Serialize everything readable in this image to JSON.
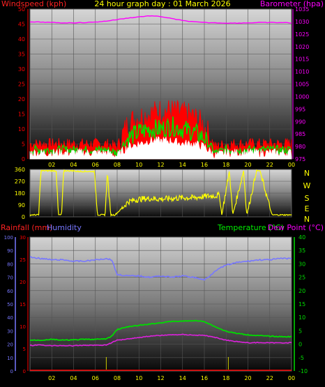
{
  "header": {
    "left_label": "Windspeed (kph)",
    "title": "24 hour graph day : 01 March 2026",
    "right_label": "Barometer (hpa)"
  },
  "lower_header": {
    "rain_label": "Rainfall (mm)",
    "humidity_label": "Humidity",
    "temp_label": "Temperature (°C)",
    "dew_label": "Dew Point (°C)"
  },
  "colors": {
    "wind": "#ff0000",
    "gust": "#00dd00",
    "avg_wind": "#ffffff",
    "barometer": "#ff00ff",
    "direction": "#ffff00",
    "humidity": "#7777ff",
    "temperature": "#00dd00",
    "dew_point": "#dd22dd",
    "rain": "#ff0000",
    "axis_left": "#ff0000",
    "axis_right": "#ff00ff",
    "time_axis": "#ffff00"
  },
  "chart_data": [
    {
      "type": "line",
      "name": "wind-barometer",
      "x_ticks": [
        "02",
        "04",
        "06",
        "08",
        "10",
        "12",
        "14",
        "16",
        "18",
        "20",
        "22",
        "00"
      ],
      "left_axis": {
        "label": "Windspeed (kph)",
        "ylim": [
          0,
          50
        ],
        "ticks": [
          0,
          5,
          10,
          15,
          20,
          25,
          30,
          35,
          40,
          45,
          50
        ]
      },
      "right_axis": {
        "label": "Barometer (hpa)",
        "ylim": [
          975,
          1035
        ],
        "ticks": [
          975,
          980,
          985,
          990,
          995,
          1000,
          1005,
          1010,
          1015,
          1020,
          1025,
          1030,
          1035
        ]
      },
      "series": [
        {
          "name": "Barometer (hpa)",
          "axis": "right",
          "x": [
            0,
            1,
            2,
            3,
            4,
            5,
            6,
            7,
            8,
            9,
            10,
            11,
            12,
            13,
            14,
            15,
            16,
            17,
            18,
            19,
            20,
            21,
            22,
            23,
            24
          ],
          "values": [
            1029.8,
            1029.8,
            1029.6,
            1029.5,
            1029.5,
            1029.6,
            1029.8,
            1030.2,
            1030.8,
            1031.4,
            1031.9,
            1032.3,
            1032.0,
            1031.2,
            1030.4,
            1029.9,
            1029.6,
            1029.5,
            1029.4,
            1029.4,
            1029.5,
            1029.6,
            1029.6,
            1029.6,
            1029.5
          ]
        },
        {
          "name": "Wind speed (kph)",
          "axis": "left",
          "x": [
            0,
            1,
            2,
            3,
            4,
            5,
            6,
            7,
            8,
            9,
            10,
            11,
            12,
            13,
            14,
            15,
            16,
            17,
            18,
            19,
            20,
            21,
            22,
            23,
            24
          ],
          "values": [
            5,
            5,
            5,
            5,
            5,
            5,
            5,
            5,
            4,
            12,
            14,
            15,
            16,
            16,
            15,
            14,
            11,
            4,
            5,
            5,
            5,
            5,
            5,
            5,
            5
          ]
        },
        {
          "name": "Gust (kph)",
          "axis": "left",
          "x": [
            0,
            1,
            2,
            3,
            4,
            5,
            6,
            7,
            8,
            9,
            10,
            11,
            12,
            13,
            14,
            15,
            16,
            17,
            18,
            19,
            20,
            21,
            22,
            23,
            24
          ],
          "values": [
            3,
            3,
            3,
            3,
            3,
            3,
            3,
            3,
            2,
            7,
            9,
            10,
            10,
            11,
            10,
            9,
            7,
            2,
            3,
            3,
            3,
            3,
            3,
            3,
            3
          ]
        },
        {
          "name": "Average wind (kph)",
          "axis": "left",
          "x": [
            0,
            1,
            2,
            3,
            4,
            5,
            6,
            7,
            8,
            9,
            10,
            11,
            12,
            13,
            14,
            15,
            16,
            17,
            18,
            19,
            20,
            21,
            22,
            23,
            24
          ],
          "values": [
            2,
            2,
            2,
            2,
            2,
            2,
            2,
            2,
            1,
            4,
            5,
            6,
            6,
            6,
            5,
            5,
            4,
            1,
            2,
            2,
            2,
            2,
            2,
            2,
            2
          ]
        }
      ]
    },
    {
      "type": "line",
      "name": "wind-direction",
      "x_ticks": [
        "02",
        "04",
        "06",
        "08",
        "10",
        "12",
        "14",
        "16",
        "18",
        "20",
        "22",
        "00"
      ],
      "ylim": [
        0,
        360
      ],
      "ticks": [
        0,
        90,
        180,
        270,
        360
      ],
      "compass_labels": [
        "N",
        "W",
        "S",
        "E",
        "N"
      ],
      "series": [
        {
          "name": "Direction (deg)",
          "x": [
            0,
            0.8,
            1.0,
            2.4,
            2.6,
            2.9,
            3.1,
            4.0,
            4.3,
            5.9,
            6.2,
            6.9,
            7.1,
            7.4,
            7.8,
            8.5,
            9,
            10,
            11,
            12,
            13,
            14,
            15,
            16,
            17,
            17.4,
            17.6,
            18.3,
            18.6,
            19.6,
            19.9,
            20.8,
            21.1,
            22.2,
            22.5,
            24
          ],
          "values": [
            15,
            15,
            350,
            350,
            15,
            15,
            350,
            350,
            345,
            345,
            15,
            15,
            340,
            15,
            15,
            70,
            115,
            135,
            140,
            135,
            140,
            145,
            145,
            155,
            160,
            165,
            15,
            350,
            15,
            350,
            15,
            350,
            350,
            15,
            15,
            15
          ]
        }
      ]
    },
    {
      "type": "line",
      "name": "temperature-humidity",
      "x_ticks": [
        "02",
        "04",
        "06",
        "08",
        "10",
        "12",
        "14",
        "16",
        "18",
        "20",
        "22",
        "00"
      ],
      "humidity_axis": {
        "label": "Humidity",
        "ylim": [
          0,
          100
        ],
        "ticks": [
          0,
          10,
          20,
          30,
          40,
          50,
          60,
          70,
          80,
          90,
          100
        ]
      },
      "rain_axis": {
        "label": "Rainfall (mm)",
        "ylim": [
          0,
          30
        ],
        "ticks": [
          0,
          5,
          10,
          15,
          20,
          25,
          30
        ]
      },
      "temp_axis": {
        "label": "Temperature (°C)",
        "ylim": [
          -10,
          40
        ],
        "ticks": [
          -10,
          -5,
          0,
          5,
          10,
          15,
          20,
          25,
          30,
          35,
          40
        ]
      },
      "series": [
        {
          "name": "Humidity",
          "axis": "humidity",
          "x": [
            0,
            1,
            2,
            3,
            4,
            5,
            6,
            7,
            7.5,
            8,
            9,
            10,
            11,
            12,
            13,
            14,
            15,
            15.5,
            16,
            16.5,
            17,
            18,
            19,
            20,
            21,
            22,
            23,
            24
          ],
          "values": [
            85,
            84,
            83,
            83,
            82,
            82,
            83,
            84,
            83,
            72,
            71,
            71,
            70,
            71,
            70,
            71,
            70,
            69,
            68,
            71,
            75,
            79,
            81,
            82,
            83,
            83,
            84,
            84
          ]
        },
        {
          "name": "Temperature (°C)",
          "axis": "temp",
          "x": [
            0,
            1,
            2,
            3,
            4,
            5,
            6,
            7,
            7.5,
            8,
            9,
            10,
            11,
            12,
            13,
            14,
            15,
            16,
            17,
            18,
            19,
            20,
            21,
            22,
            23,
            24
          ],
          "values": [
            1.5,
            1.5,
            1.8,
            1.5,
            1.6,
            1.8,
            1.8,
            2.0,
            3.0,
            5.5,
            6.5,
            7.0,
            7.5,
            8.0,
            8.5,
            8.6,
            8.8,
            8.5,
            6.5,
            4.8,
            4.0,
            3.5,
            3.2,
            3.0,
            2.8,
            2.8
          ]
        },
        {
          "name": "Dew Point (°C)",
          "axis": "temp",
          "x": [
            0,
            1,
            2,
            3,
            4,
            5,
            6,
            7,
            8,
            9,
            10,
            11,
            12,
            13,
            14,
            15,
            16,
            17,
            18,
            19,
            20,
            21,
            22,
            23,
            24
          ],
          "values": [
            -0.5,
            -0.3,
            -0.6,
            -0.5,
            -0.6,
            -0.4,
            -0.4,
            -0.3,
            1.5,
            2.0,
            2.5,
            3.0,
            3.3,
            3.5,
            3.6,
            3.4,
            3.3,
            2.5,
            1.5,
            1.0,
            0.5,
            0.6,
            0.5,
            0.5,
            0.6
          ]
        },
        {
          "name": "Rainfall (mm)",
          "axis": "rain",
          "x": [
            0,
            24
          ],
          "values": [
            0,
            0
          ]
        }
      ]
    }
  ]
}
